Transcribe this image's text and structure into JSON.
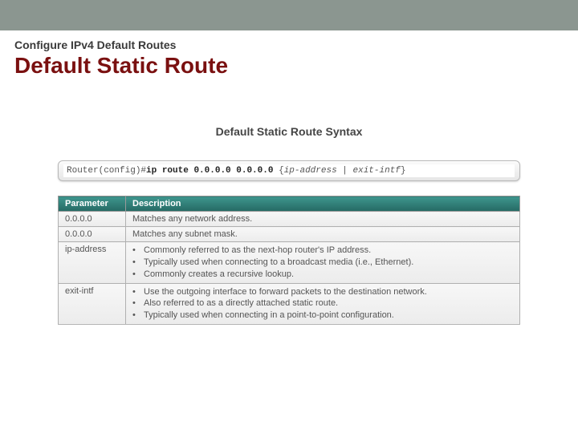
{
  "header": {
    "subtitle": "Configure IPv4 Default Routes",
    "title": "Default Static Route"
  },
  "figure": {
    "title": "Default Static Route Syntax",
    "syntax": {
      "prefix": "Router(config)#",
      "cmd": "ip route 0.0.0.0 0.0.0.0",
      "arg_open": " {",
      "arg1": "ip-address",
      "sep": " | ",
      "arg2": "exit-intf",
      "arg_close": "}"
    },
    "table": {
      "col_param": "Parameter",
      "col_desc": "Description",
      "rows": [
        {
          "param": "0.0.0.0",
          "desc_text": "Matches any network address.",
          "bullets": null
        },
        {
          "param": "0.0.0.0",
          "desc_text": "Matches any subnet mask.",
          "bullets": null
        },
        {
          "param": "ip-address",
          "desc_text": null,
          "bullets": [
            "Commonly referred to as the next-hop router's IP address.",
            "Typically used when connecting to a broadcast media (i.e., Ethernet).",
            "Commonly creates a recursive lookup."
          ]
        },
        {
          "param": "exit-intf",
          "desc_text": null,
          "bullets": [
            "Use the outgoing interface to forward packets to the destination network.",
            "Also referred to as a directly attached static route.",
            "Typically used when connecting in a point-to-point configuration."
          ]
        }
      ]
    }
  },
  "colors": {
    "topbar": "#8b9690",
    "title": "#7a1010",
    "table_header_bg": "#2d7a74"
  }
}
